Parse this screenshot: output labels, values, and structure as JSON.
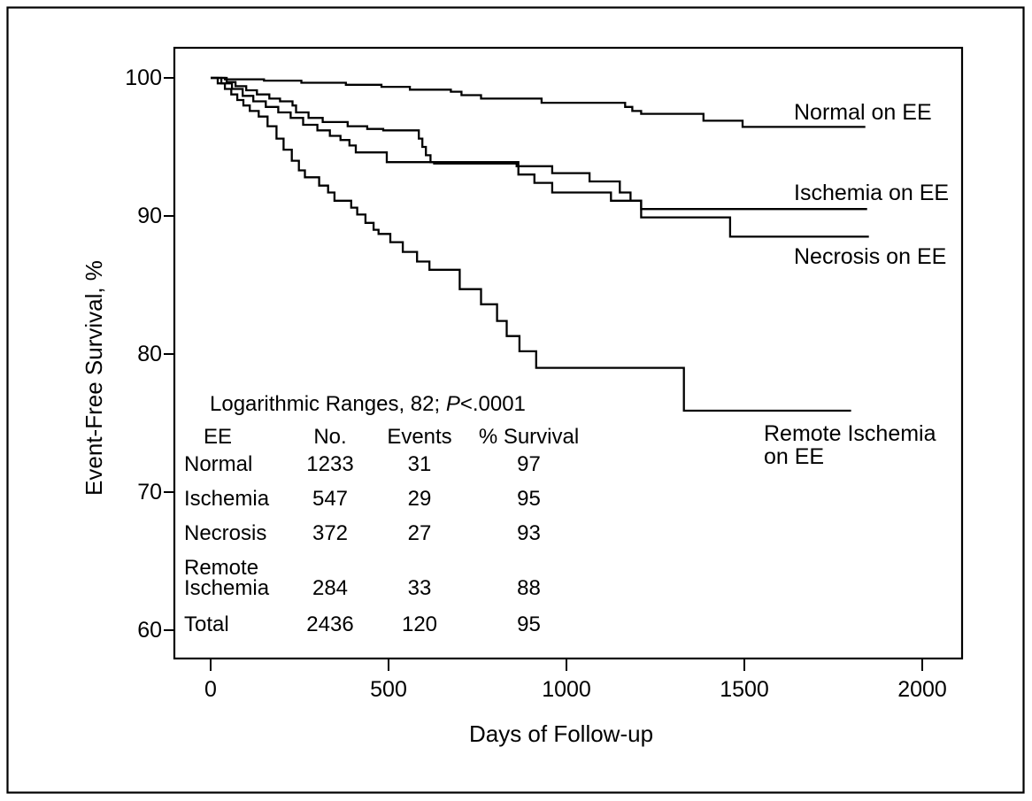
{
  "chart_data": {
    "type": "line",
    "subtype": "kaplan-meier-step",
    "title": "",
    "xlabel": "Days of Follow-up",
    "ylabel": "Event-Free Survival, %",
    "xlim": [
      0,
      2100
    ],
    "ylim": [
      58,
      102
    ],
    "xticks": [
      0,
      500,
      1000,
      1500,
      2000
    ],
    "yticks": [
      100,
      90,
      80,
      70,
      60
    ],
    "grid": false,
    "legend_position": "labels-at-curve-ends",
    "series": [
      {
        "name": "Normal on EE",
        "points": [
          [
            0,
            100
          ],
          [
            40,
            99.9
          ],
          [
            150,
            99.8
          ],
          [
            255,
            99.65
          ],
          [
            380,
            99.5
          ],
          [
            480,
            99.35
          ],
          [
            560,
            99.15
          ],
          [
            675,
            99.0
          ],
          [
            705,
            98.75
          ],
          [
            760,
            98.5
          ],
          [
            930,
            98.2
          ],
          [
            1165,
            97.9
          ],
          [
            1185,
            97.6
          ],
          [
            1210,
            97.4
          ],
          [
            1385,
            96.9
          ],
          [
            1495,
            96.45
          ],
          [
            1840,
            96.45
          ]
        ]
      },
      {
        "name": "Ischemia on EE",
        "points": [
          [
            0,
            100
          ],
          [
            45,
            99.7
          ],
          [
            70,
            99.4
          ],
          [
            100,
            99.1
          ],
          [
            130,
            98.8
          ],
          [
            165,
            98.5
          ],
          [
            195,
            98.3
          ],
          [
            230,
            98.0
          ],
          [
            240,
            97.5
          ],
          [
            275,
            97.1
          ],
          [
            315,
            96.8
          ],
          [
            385,
            96.5
          ],
          [
            440,
            96.3
          ],
          [
            485,
            96.2
          ],
          [
            585,
            95.6
          ],
          [
            595,
            95.0
          ],
          [
            605,
            94.4
          ],
          [
            618,
            93.9
          ],
          [
            628,
            93.8
          ],
          [
            860,
            93.6
          ],
          [
            960,
            93.1
          ],
          [
            1065,
            92.5
          ],
          [
            1150,
            91.7
          ],
          [
            1180,
            91.1
          ],
          [
            1210,
            90.5
          ],
          [
            1845,
            90.5
          ]
        ]
      },
      {
        "name": "Necrosis on EE",
        "points": [
          [
            0,
            100
          ],
          [
            30,
            99.6
          ],
          [
            60,
            99.2
          ],
          [
            90,
            98.7
          ],
          [
            120,
            98.3
          ],
          [
            155,
            97.9
          ],
          [
            190,
            97.5
          ],
          [
            225,
            97.1
          ],
          [
            260,
            96.6
          ],
          [
            300,
            96.2
          ],
          [
            335,
            95.8
          ],
          [
            365,
            95.5
          ],
          [
            390,
            95.1
          ],
          [
            408,
            94.6
          ],
          [
            495,
            93.9
          ],
          [
            865,
            93.0
          ],
          [
            910,
            92.4
          ],
          [
            960,
            91.7
          ],
          [
            1125,
            91.1
          ],
          [
            1210,
            89.9
          ],
          [
            1460,
            88.5
          ],
          [
            1850,
            88.5
          ]
        ]
      },
      {
        "name": "Remote Ischemia on EE",
        "points": [
          [
            0,
            100
          ],
          [
            20,
            99.6
          ],
          [
            40,
            99.2
          ],
          [
            58,
            98.8
          ],
          [
            75,
            98.4
          ],
          [
            92,
            98.0
          ],
          [
            110,
            97.6
          ],
          [
            135,
            97.2
          ],
          [
            160,
            96.5
          ],
          [
            185,
            95.6
          ],
          [
            205,
            94.8
          ],
          [
            228,
            94.0
          ],
          [
            248,
            93.3
          ],
          [
            265,
            92.8
          ],
          [
            305,
            92.2
          ],
          [
            330,
            91.7
          ],
          [
            348,
            91.1
          ],
          [
            395,
            90.6
          ],
          [
            412,
            90.1
          ],
          [
            435,
            89.5
          ],
          [
            458,
            89.0
          ],
          [
            472,
            88.7
          ],
          [
            505,
            88.1
          ],
          [
            540,
            87.4
          ],
          [
            580,
            86.7
          ],
          [
            615,
            86.1
          ],
          [
            700,
            84.7
          ],
          [
            760,
            83.6
          ],
          [
            805,
            82.4
          ],
          [
            832,
            81.3
          ],
          [
            868,
            80.2
          ],
          [
            915,
            79.0
          ],
          [
            1330,
            75.9
          ],
          [
            1800,
            75.9
          ]
        ]
      }
    ]
  },
  "curve_labels": {
    "normal": "Normal on EE",
    "ischemia": "Ischemia on EE",
    "necrosis": "Necrosis on EE",
    "remote_line1": "Remote Ischemia",
    "remote_line2": "on EE"
  },
  "inset_table": {
    "title_prefix": "Logarithmic Ranges, 82; ",
    "title_p": "P",
    "title_p_value": "<.0001",
    "headers": [
      "EE",
      "No.",
      "Events",
      "% Survival"
    ],
    "rows": [
      {
        "ee": "Normal",
        "no": "1233",
        "events": "31",
        "survival": "97"
      },
      {
        "ee": "Ischemia",
        "no": "547",
        "events": "29",
        "survival": "95"
      },
      {
        "ee": "Necrosis",
        "no": "372",
        "events": "27",
        "survival": "93"
      },
      {
        "ee_line1": "Remote",
        "ee_line2": "Ischemia",
        "no": "284",
        "events": "33",
        "survival": "88"
      },
      {
        "ee": "Total",
        "no": "2436",
        "events": "120",
        "survival": "95"
      }
    ]
  },
  "colors": {
    "line": "#000000",
    "background": "#ffffff",
    "text": "#000000"
  }
}
